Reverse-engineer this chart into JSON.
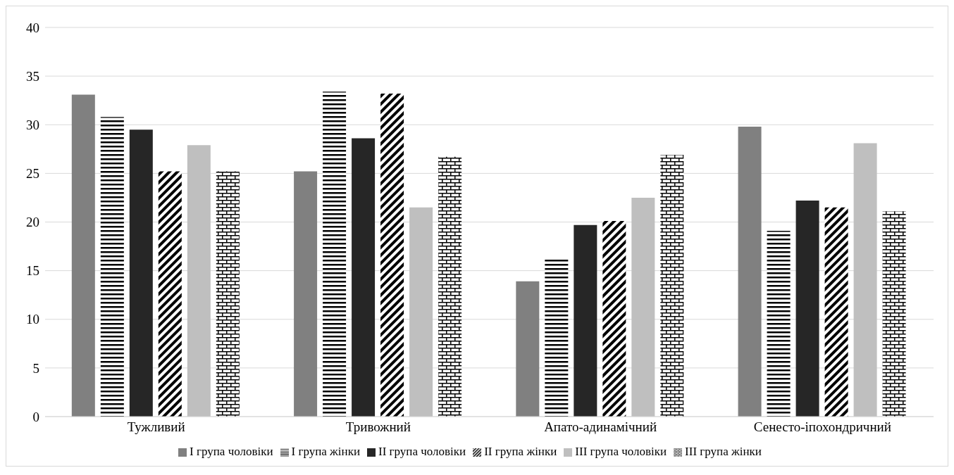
{
  "chart_data": {
    "type": "bar",
    "categories": [
      "Тужливий",
      "Тривожний",
      "Апато-адинамічний",
      "Сенесто-іпохондричний"
    ],
    "series": [
      {
        "name": "I група чоловіки",
        "color": "#808080",
        "values": [
          33.1,
          25.2,
          13.9,
          29.8
        ]
      },
      {
        "name": "I група жінки",
        "color": "#000000",
        "values": [
          30.8,
          33.4,
          16.2,
          19.1
        ]
      },
      {
        "name": "II група чоловіки",
        "color": "#262626",
        "values": [
          29.5,
          28.6,
          19.7,
          22.2
        ]
      },
      {
        "name": "II група жінки",
        "color": "#000000",
        "values": [
          25.2,
          33.2,
          20.1,
          21.5
        ]
      },
      {
        "name": "III група чоловіки",
        "color": "#bfbfbf",
        "values": [
          27.9,
          21.5,
          22.5,
          28.1
        ]
      },
      {
        "name": "III група жінки",
        "color": "#000000",
        "values": [
          25.2,
          26.7,
          26.9,
          21.1
        ]
      }
    ],
    "ylim": [
      0,
      40
    ],
    "yticks": [
      0,
      5,
      10,
      15,
      20,
      25,
      30,
      35,
      40
    ],
    "grid": "y",
    "legend": "bottom"
  }
}
